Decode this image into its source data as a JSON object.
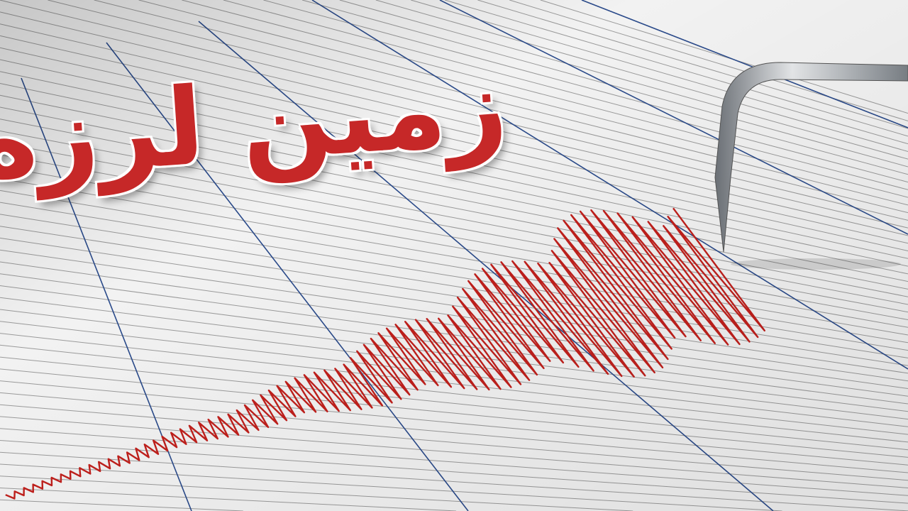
{
  "headline": "زمین لرزه",
  "colors": {
    "paper": "#f2f2f2",
    "grid_line": "#9a9a9a",
    "major_line": "#2a4a8a",
    "trace": "#c0201c",
    "headline": "#c62828",
    "needle": "#9aa0a6"
  },
  "icons": [
    "seismograph-needle"
  ]
}
